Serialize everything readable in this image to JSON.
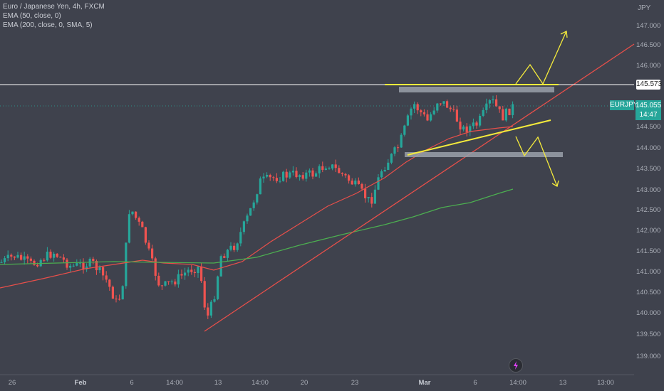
{
  "legend": {
    "title": "Euro / Japanese Yen, 4h, FXCM",
    "ema50": "EMA (50, close, 0)",
    "ema200": "EMA (200, close, 0, SMA, 5)"
  },
  "axis": {
    "currency": "JPY",
    "price_ticks": [
      "147.000",
      "146.500",
      "146.000",
      "145.500",
      "145.000",
      "144.500",
      "144.000",
      "143.500",
      "143.000",
      "142.500",
      "142.000",
      "141.500",
      "141.000",
      "140.500",
      "140.000",
      "139.500",
      "139.000"
    ],
    "time_ticks": [
      "26",
      "Feb",
      "6",
      "14:00",
      "13",
      "14:00",
      "20",
      "23",
      "Mar",
      "6",
      "14:00",
      "13",
      "13:00"
    ],
    "time_bold": [
      "Feb",
      "Mar"
    ]
  },
  "price_labels": {
    "resistance": "145.573",
    "symbol": "EURJPY",
    "current_price": "145.055",
    "countdown": "14:47"
  },
  "colors": {
    "background": "#3f424d",
    "up": "#26a69a",
    "down": "#ef5350",
    "ema50": "#e84f4a",
    "ema200": "#4caf50",
    "annotation": "#f5eb3b",
    "trendline": "#e84f4a",
    "zone": "#9aa0aa"
  },
  "icons": {
    "alert": "lightning-icon"
  }
}
